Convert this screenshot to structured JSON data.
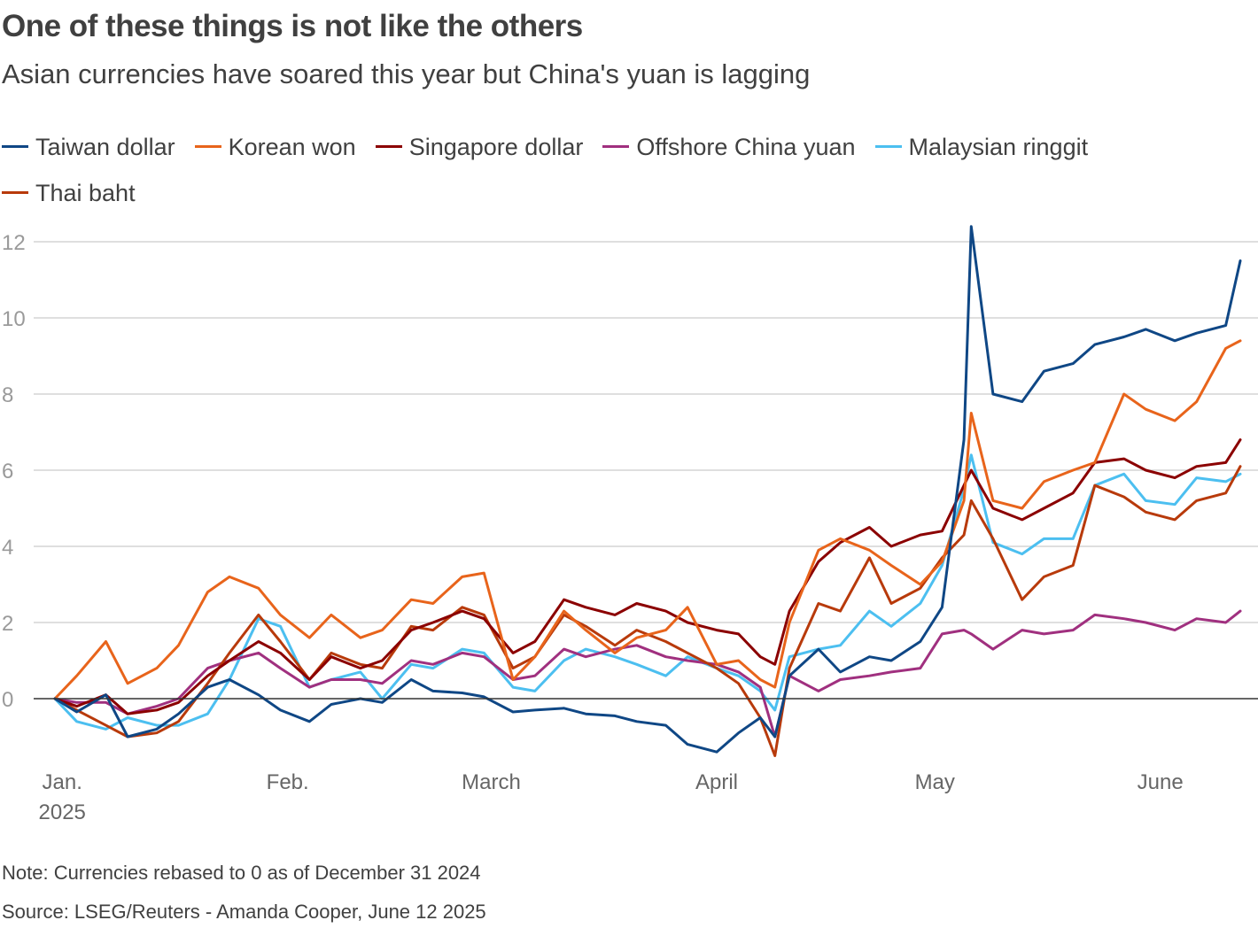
{
  "title": "One of these things is not like the others",
  "subtitle": "Asian currencies have soared this year but China's yuan is lagging",
  "note": "Note: Currencies rebased to 0 as of December 31 2024",
  "source": "Source: LSEG/Reuters - Amanda Cooper, June 12 2025",
  "chart_data": {
    "type": "line",
    "title": "One of these things is not like the others",
    "xlabel": "",
    "ylabel": "",
    "ylim": [
      -2,
      12.5
    ],
    "y_ticks": [
      0,
      2,
      4,
      6,
      8,
      10,
      12
    ],
    "x_range": [
      "2024-12-31",
      "2025-06-12"
    ],
    "x_ticks": [
      {
        "date": "2025-01-01",
        "label": "Jan.",
        "sublabel": "2025"
      },
      {
        "date": "2025-02-01",
        "label": "Feb."
      },
      {
        "date": "2025-03-01",
        "label": "March"
      },
      {
        "date": "2025-04-01",
        "label": "April"
      },
      {
        "date": "2025-05-01",
        "label": "May"
      },
      {
        "date": "2025-06-01",
        "label": "June"
      }
    ],
    "grid": true,
    "legend_position": "top",
    "x": [
      "2024-12-31",
      "2025-01-03",
      "2025-01-07",
      "2025-01-10",
      "2025-01-14",
      "2025-01-17",
      "2025-01-21",
      "2025-01-24",
      "2025-01-28",
      "2025-01-31",
      "2025-02-04",
      "2025-02-07",
      "2025-02-11",
      "2025-02-14",
      "2025-02-18",
      "2025-02-21",
      "2025-02-25",
      "2025-02-28",
      "2025-03-04",
      "2025-03-07",
      "2025-03-11",
      "2025-03-14",
      "2025-03-18",
      "2025-03-21",
      "2025-03-25",
      "2025-03-28",
      "2025-04-01",
      "2025-04-04",
      "2025-04-07",
      "2025-04-09",
      "2025-04-11",
      "2025-04-15",
      "2025-04-18",
      "2025-04-22",
      "2025-04-25",
      "2025-04-29",
      "2025-05-02",
      "2025-05-05",
      "2025-05-06",
      "2025-05-09",
      "2025-05-13",
      "2025-05-16",
      "2025-05-20",
      "2025-05-23",
      "2025-05-27",
      "2025-05-30",
      "2025-06-03",
      "2025-06-06",
      "2025-06-10",
      "2025-06-12"
    ],
    "series": [
      {
        "name": "Taiwan dollar",
        "color": "#0f4785",
        "values": [
          0,
          -0.35,
          0.1,
          -1.0,
          -0.8,
          -0.4,
          0.3,
          0.5,
          0.1,
          -0.3,
          -0.6,
          -0.15,
          0.0,
          -0.1,
          0.5,
          0.2,
          0.15,
          0.05,
          -0.35,
          -0.3,
          -0.25,
          -0.4,
          -0.45,
          -0.6,
          -0.7,
          -1.2,
          -1.4,
          -0.9,
          -0.5,
          -1.0,
          0.6,
          1.3,
          0.7,
          1.1,
          1.0,
          1.5,
          2.4,
          6.8,
          12.4,
          8.0,
          7.8,
          8.6,
          8.8,
          9.3,
          9.5,
          9.7,
          9.4,
          9.6,
          9.8,
          11.5
        ]
      },
      {
        "name": "Korean won",
        "color": "#e8641b",
        "values": [
          0,
          0.6,
          1.5,
          0.4,
          0.8,
          1.4,
          2.8,
          3.2,
          2.9,
          2.2,
          1.6,
          2.2,
          1.6,
          1.8,
          2.6,
          2.5,
          3.2,
          3.3,
          0.5,
          1.1,
          2.3,
          1.8,
          1.2,
          1.6,
          1.8,
          2.4,
          0.9,
          1.0,
          0.5,
          0.3,
          2.0,
          3.9,
          4.2,
          3.9,
          3.5,
          3.0,
          3.6,
          5.2,
          7.5,
          5.2,
          5.0,
          5.7,
          6.0,
          6.2,
          8.0,
          7.6,
          7.3,
          7.8,
          9.2,
          9.4
        ]
      },
      {
        "name": "Singapore dollar",
        "color": "#8b0000",
        "values": [
          0,
          -0.2,
          0.1,
          -0.4,
          -0.3,
          -0.1,
          0.6,
          1.0,
          1.5,
          1.2,
          0.5,
          1.1,
          0.8,
          1.0,
          1.8,
          2.0,
          2.3,
          2.1,
          1.2,
          1.5,
          2.6,
          2.4,
          2.2,
          2.5,
          2.3,
          2.0,
          1.8,
          1.7,
          1.1,
          0.9,
          2.3,
          3.6,
          4.1,
          4.5,
          4.0,
          4.3,
          4.4,
          5.6,
          6.0,
          5.0,
          4.7,
          5.0,
          5.4,
          6.2,
          6.3,
          6.0,
          5.8,
          6.1,
          6.2,
          6.8
        ]
      },
      {
        "name": "Offshore China yuan",
        "color": "#a0307f",
        "values": [
          0,
          -0.1,
          -0.1,
          -0.4,
          -0.2,
          0.0,
          0.8,
          1.0,
          1.2,
          0.8,
          0.3,
          0.5,
          0.5,
          0.4,
          1.0,
          0.9,
          1.2,
          1.1,
          0.5,
          0.6,
          1.3,
          1.1,
          1.3,
          1.4,
          1.1,
          1.0,
          0.9,
          0.7,
          0.3,
          -1.0,
          0.6,
          0.2,
          0.5,
          0.6,
          0.7,
          0.8,
          1.7,
          1.8,
          1.7,
          1.3,
          1.8,
          1.7,
          1.8,
          2.2,
          2.1,
          2.0,
          1.8,
          2.1,
          2.0,
          2.3
        ]
      },
      {
        "name": "Malaysian ringgit",
        "color": "#4cbff0",
        "values": [
          0,
          -0.6,
          -0.8,
          -0.5,
          -0.7,
          -0.7,
          -0.4,
          0.5,
          2.1,
          1.9,
          0.3,
          0.5,
          0.7,
          0.0,
          0.9,
          0.8,
          1.3,
          1.2,
          0.3,
          0.2,
          1.0,
          1.3,
          1.1,
          0.9,
          0.6,
          1.1,
          0.8,
          0.6,
          0.2,
          -0.3,
          1.1,
          1.3,
          1.4,
          2.3,
          1.9,
          2.5,
          3.5,
          5.5,
          6.4,
          4.1,
          3.8,
          4.2,
          4.2,
          5.6,
          5.9,
          5.2,
          5.1,
          5.8,
          5.7,
          5.9
        ]
      },
      {
        "name": "Thai baht",
        "color": "#b83a0b",
        "values": [
          0,
          -0.3,
          -0.7,
          -1.0,
          -0.9,
          -0.6,
          0.4,
          1.2,
          2.2,
          1.5,
          0.5,
          1.2,
          0.9,
          0.8,
          1.9,
          1.8,
          2.4,
          2.2,
          0.8,
          1.1,
          2.2,
          1.9,
          1.4,
          1.8,
          1.5,
          1.2,
          0.8,
          0.4,
          -0.5,
          -1.5,
          0.8,
          2.5,
          2.3,
          3.7,
          2.5,
          2.9,
          3.7,
          4.3,
          5.2,
          4.2,
          2.6,
          3.2,
          3.5,
          5.6,
          5.3,
          4.9,
          4.7,
          5.2,
          5.4,
          6.1
        ]
      }
    ]
  }
}
